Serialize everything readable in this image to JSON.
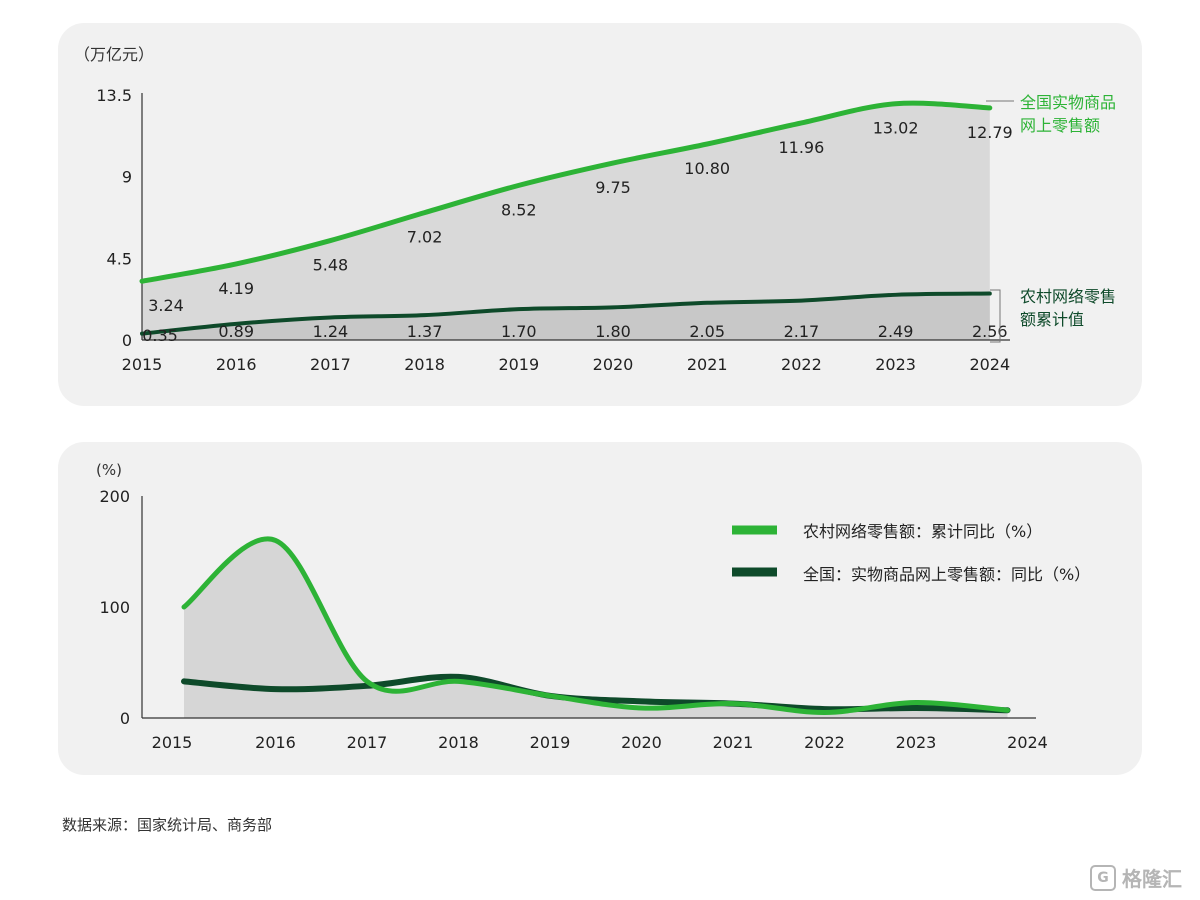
{
  "source": "数据来源：国家统计局、商务部",
  "watermark": {
    "symbol": "G",
    "text": "格隆汇"
  },
  "chart_data": [
    {
      "type": "area",
      "unit_label": "（万亿元）",
      "x": [
        "2015",
        "2016",
        "2017",
        "2018",
        "2019",
        "2020",
        "2021",
        "2022",
        "2023",
        "2024"
      ],
      "y_ticks": [
        "13.5",
        "9",
        "4.5",
        "0"
      ],
      "ylim": [
        0,
        13.5
      ],
      "grid": false,
      "series": [
        {
          "name": "全国实物商品网上零售额",
          "legend_lines": [
            "全国实物商品",
            "网上零售额"
          ],
          "color": "#2db336",
          "values": [
            3.24,
            4.19,
            5.48,
            7.02,
            8.52,
            9.75,
            10.8,
            11.96,
            13.02,
            12.79
          ],
          "labels": [
            "3.24",
            "4.19",
            "5.48",
            "7.02",
            "8.52",
            "9.75",
            "10.80",
            "11.96",
            "13.02",
            "12.79"
          ]
        },
        {
          "name": "农村网络零售额累计值",
          "legend_lines": [
            "农村网络零售",
            "额累计值"
          ],
          "color": "#0e4a2a",
          "values": [
            0.35,
            0.89,
            1.24,
            1.37,
            1.7,
            1.8,
            2.05,
            2.17,
            2.49,
            2.56
          ],
          "labels": [
            "0.35",
            "0.89",
            "1.24",
            "1.37",
            "1.70",
            "1.80",
            "2.05",
            "2.17",
            "2.49",
            "2.56"
          ]
        }
      ]
    },
    {
      "type": "line",
      "unit_label": "(%)",
      "x": [
        "2015",
        "2016",
        "2017",
        "2018",
        "2019",
        "2020",
        "2021",
        "2022",
        "2023",
        "2024"
      ],
      "y_ticks": [
        "200",
        "100",
        "0"
      ],
      "ylim": [
        0,
        200
      ],
      "grid": false,
      "legend_position": "top-right",
      "series": [
        {
          "name": "农村网络零售额：累计同比（%）",
          "color": "#2db336",
          "values": [
            100,
            160,
            33,
            33,
            20,
            9,
            13,
            5,
            14,
            7
          ]
        },
        {
          "name": "全国：实物商品网上零售额：同比（%）",
          "color": "#0e4a2a",
          "values": [
            33,
            26,
            29,
            37,
            20,
            15,
            13,
            8,
            9,
            7
          ]
        }
      ]
    }
  ]
}
